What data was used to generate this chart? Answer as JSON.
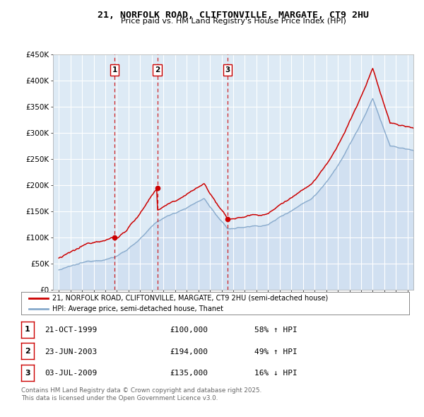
{
  "title": "21, NORFOLK ROAD, CLIFTONVILLE, MARGATE, CT9 2HU",
  "subtitle": "Price paid vs. HM Land Registry's House Price Index (HPI)",
  "legend_line1": "21, NORFOLK ROAD, CLIFTONVILLE, MARGATE, CT9 2HU (semi-detached house)",
  "legend_line2": "HPI: Average price, semi-detached house, Thanet",
  "footer": "Contains HM Land Registry data © Crown copyright and database right 2025.\nThis data is licensed under the Open Government Licence v3.0.",
  "sales": [
    {
      "label": "1",
      "date": "21-OCT-1999",
      "price": 100000,
      "hpi_rel": "58% ↑ HPI",
      "x": 1999.8
    },
    {
      "label": "2",
      "date": "23-JUN-2003",
      "price": 194000,
      "hpi_rel": "49% ↑ HPI",
      "x": 2003.47
    },
    {
      "label": "3",
      "date": "03-JUL-2009",
      "price": 135000,
      "hpi_rel": "16% ↓ HPI",
      "x": 2009.5
    }
  ],
  "ylim": [
    0,
    450000
  ],
  "xlim": [
    1994.5,
    2025.5
  ],
  "red_color": "#cc0000",
  "blue_line_color": "#88aacc",
  "blue_fill_color": "#ccddf0",
  "bg_color": "#ddeaf5",
  "grid_color": "#ffffff",
  "vline_color": "#cc0000"
}
